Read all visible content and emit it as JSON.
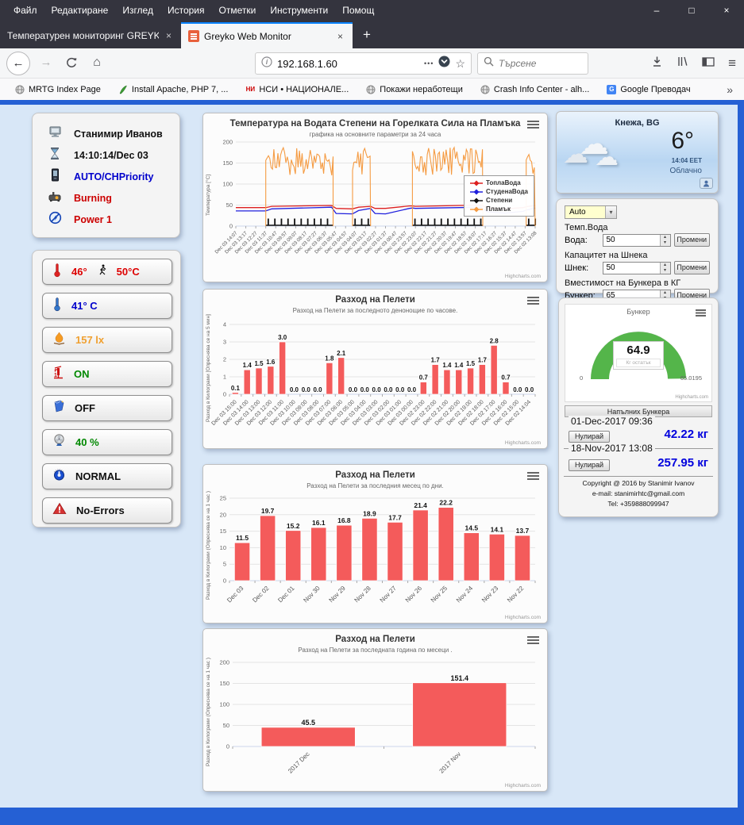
{
  "browser": {
    "menu": [
      "Файл",
      "Редактиране",
      "Изглед",
      "История",
      "Отметки",
      "Инструменти",
      "Помощ"
    ],
    "window_controls": {
      "minimize": "–",
      "maximize": "□",
      "close": "×"
    },
    "tabs": [
      {
        "title": "Температурен мониторинг GREYK"
      },
      {
        "title": "Greyko Web Monitor"
      }
    ],
    "tab_close_glyph": "×",
    "new_tab_glyph": "+",
    "url": "192.168.1.60",
    "page_actions_glyph": "•••",
    "search_placeholder": "Търсене",
    "bookmarks": [
      "MRTG Index Page",
      "Install Apache, PHP 7, ...",
      "НСИ • НАЦИОНАЛЕ...",
      "Покажи неработещи",
      "Crash Info Center - alh...",
      "Google Преводач"
    ],
    "bookmarks_overflow_glyph": "»"
  },
  "user_panel": {
    "rows": [
      {
        "text": "Станимир Иванов",
        "color": "#111111"
      },
      {
        "text": "14:10:14/Dec 03",
        "color": "#111111"
      },
      {
        "text": "AUTO/CHPriority",
        "color": "#0000cc"
      },
      {
        "text": "Burning",
        "color": "#cc0000"
      },
      {
        "text": "Power 1",
        "color": "#cc0000"
      }
    ]
  },
  "status_buttons": [
    {
      "label": "46°",
      "label2": "50°C",
      "color": "#dd0000"
    },
    {
      "label": "41° C",
      "color": "#0000cc"
    },
    {
      "label": "157 lx",
      "color": "#f0a030"
    },
    {
      "label": "ON",
      "color": "#008800"
    },
    {
      "label": "OFF",
      "color": "#111111"
    },
    {
      "label": "40 %",
      "color": "#008800"
    },
    {
      "label": "NORMAL",
      "color": "#111111"
    },
    {
      "label": "No-Errors",
      "color": "#111111"
    }
  ],
  "weather": {
    "city": "Кнежа, BG",
    "temperature": "6°",
    "time": "14:04 EET",
    "condition": "Облачно"
  },
  "controls": {
    "mode": "Auto",
    "water_header": "Темп.Вода",
    "water_label": "Вода:",
    "water_value": "50",
    "auger_header": "Капацитет на Шнека",
    "auger_label": "Шнек:",
    "auger_value": "50",
    "bunker_header": "Вместимост на Бункера в КГ",
    "bunker_label": "Бункер:",
    "bunker_value": "65",
    "change_button": "Промени"
  },
  "bunker_panel": {
    "header": "Напълних Бункера",
    "entries": [
      {
        "date": "01-Dec-2017 09:36",
        "reset_button": "Нулирай",
        "amount": "42.22 кг"
      },
      {
        "date": "18-Nov-2017 13:08",
        "reset_button": "Нулирай",
        "amount": "257.95 кг"
      }
    ],
    "copyright_lines": [
      "Copyright @ 2016 by Stanimir Ivanov",
      "e-mail: stanimirhtc@gmail.com",
      "Tel: +359888099947"
    ]
  },
  "chart_data": [
    {
      "type": "line",
      "title": "Температура на Водата Степени на Горелката Сила на Пламъка",
      "subtitle": "графика на основните параметри за 24 часа",
      "ylabel": "Температура [°C]",
      "ylim": [
        0,
        200
      ],
      "yticks": [
        0,
        50,
        100,
        150,
        200
      ],
      "grid": true,
      "legend_position": "right",
      "credits": "Highcharts.com",
      "x_labels": [
        "Dec 03 14:07",
        "Dec 03 13:17",
        "Dec 03 12:27",
        "Dec 03 11:37",
        "Dec 03 10:47",
        "Dec 03 09:57",
        "Dec 03 09:07",
        "Dec 03 08:17",
        "Dec 03 07:27",
        "Dec 03 06:37",
        "Dec 03 05:47",
        "Dec 03 04:57",
        "Dec 03 04:07",
        "Dec 03 03:17",
        "Dec 03 02:27",
        "Dec 03 01:37",
        "Dec 03 00:47",
        "Dec 02 23:57",
        "Dec 02 23:07",
        "Dec 02 22:17",
        "Dec 02 21:27",
        "Dec 02 20:37",
        "Dec 02 19:47",
        "Dec 02 18:57",
        "Dec 02 18:07",
        "Dec 02 17:17",
        "Dec 02 16:27",
        "Dec 02 15:37",
        "Dec 02 14:47",
        "Dec 02 13:57",
        "Dec 02 13:08"
      ],
      "series": [
        {
          "name": "ТоплаВода",
          "color": "#dd2020",
          "render": "line",
          "points": [
            [
              0,
              44
            ],
            [
              10,
              44
            ],
            [
              12,
              47
            ],
            [
              32,
              49
            ],
            [
              33.5,
              42
            ],
            [
              39,
              41
            ],
            [
              41,
              45
            ],
            [
              45,
              47
            ],
            [
              46.5,
              42
            ],
            [
              50,
              42
            ],
            [
              58,
              48
            ],
            [
              59,
              48
            ],
            [
              60,
              47
            ],
            [
              82,
              50
            ],
            [
              84,
              43
            ],
            [
              90,
              41
            ],
            [
              96,
              44
            ],
            [
              97,
              46
            ],
            [
              100,
              49
            ]
          ]
        },
        {
          "name": "СтуденаВода",
          "color": "#2020dd",
          "render": "line",
          "points": [
            [
              0,
              36
            ],
            [
              10,
              36
            ],
            [
              12,
              41
            ],
            [
              32,
              45
            ],
            [
              33.5,
              30
            ],
            [
              39,
              29
            ],
            [
              41,
              37
            ],
            [
              45,
              42
            ],
            [
              46.5,
              30
            ],
            [
              50,
              29
            ],
            [
              58,
              42
            ],
            [
              59,
              43
            ],
            [
              60,
              42
            ],
            [
              82,
              45
            ],
            [
              84,
              34
            ],
            [
              90,
              31
            ],
            [
              96,
              35
            ],
            [
              97,
              38
            ],
            [
              100,
              43
            ]
          ]
        },
        {
          "name": "Степени",
          "color": "#101010",
          "render": "pulses",
          "amplitude": 16,
          "windows": [
            [
              10,
              32.5
            ],
            [
              39,
              45
            ],
            [
              59,
              82.5
            ],
            [
              97,
              100
            ]
          ]
        },
        {
          "name": "Пламък",
          "color": "#f59b42",
          "render": "bursts",
          "range": [
            100,
            190
          ],
          "windows": [
            [
              10,
              32.5
            ],
            [
              39,
              45
            ],
            [
              59,
              82.5
            ],
            [
              97,
              100
            ]
          ]
        }
      ]
    },
    {
      "type": "bar",
      "title": "Разход на Пелети",
      "subtitle": "Разход на Пелети за последното денонощие по часове.",
      "ylabel": "Разход в Килограми [Опреснява се на 5 мин]",
      "ylim": [
        0,
        4
      ],
      "yticks": [
        0,
        1,
        2,
        3,
        4
      ],
      "grid": true,
      "bar_color": "#f45b5b",
      "credits": "Highcharts.com",
      "categories": [
        "Dec 03 15:00",
        "Dec 03 14:00",
        "Dec 03 13:00",
        "Dec 03 12:00",
        "Dec 03 11:00",
        "Dec 03 10:00",
        "Dec 03 09:00",
        "Dec 03 08:00",
        "Dec 03 07:00",
        "Dec 03 06:00",
        "Dec 03 05:00",
        "Dec 03 04:00",
        "Dec 03 03:00",
        "Dec 03 02:00",
        "Dec 03 01:00",
        "Dec 03 00:00",
        "Dec 02 23:00",
        "Dec 02 22:00",
        "Dec 02 21:00",
        "Dec 02 20:00",
        "Dec 02 19:00",
        "Dec 02 18:00",
        "Dec 02 17:00",
        "Dec 02 16:00",
        "Dec 02 15:00",
        "Dec 02 14:04"
      ],
      "values": [
        0.1,
        1.4,
        1.5,
        1.6,
        3.0,
        0.0,
        0.0,
        0.0,
        1.8,
        2.1,
        0.0,
        0.0,
        0.0,
        0.0,
        0.0,
        0.0,
        0.7,
        1.7,
        1.4,
        1.4,
        1.5,
        1.7,
        2.8,
        0.7,
        0.0,
        0.0
      ]
    },
    {
      "type": "bar",
      "title": "Разход на Пелети",
      "subtitle": "Разход на Пелети за последния месец по дни.",
      "ylabel": "Разход в Килограми (Опреснява се на 1 час )",
      "ylim": [
        0,
        25
      ],
      "yticks": [
        0,
        5,
        10,
        15,
        20,
        25
      ],
      "grid": true,
      "bar_color": "#f45b5b",
      "credits": "Highcharts.com",
      "categories": [
        "Dec 03",
        "Dec 02",
        "Dec 01",
        "Nov 30",
        "Nov 29",
        "Nov 28",
        "Nov 27",
        "Nov 26",
        "Nov 25",
        "Nov 24",
        "Nov 23",
        "Nov 22"
      ],
      "values": [
        11.5,
        19.7,
        15.2,
        16.1,
        16.8,
        18.9,
        17.7,
        21.4,
        22.2,
        14.5,
        14.1,
        13.7
      ]
    },
    {
      "type": "bar",
      "title": "Разход на Пелети",
      "subtitle": "Разход на Пелети за последната година по месеци .",
      "ylabel": "Разход в Килограми (Опреснява се на 1 час )",
      "ylim": [
        0,
        200
      ],
      "yticks": [
        0,
        50,
        100,
        150,
        200
      ],
      "grid": true,
      "bar_color": "#f45b5b",
      "credits": "Highcharts.com",
      "categories": [
        "2017 Dec",
        "2017 Nov"
      ],
      "values": [
        45.5,
        151.4
      ]
    },
    {
      "type": "gauge",
      "title": "Бункер",
      "value": 64.9,
      "value_sublabel": "Кг остатък",
      "min": 0,
      "max": 65.0195,
      "color": "#54b54a",
      "credits": "Highcharts.com"
    }
  ]
}
